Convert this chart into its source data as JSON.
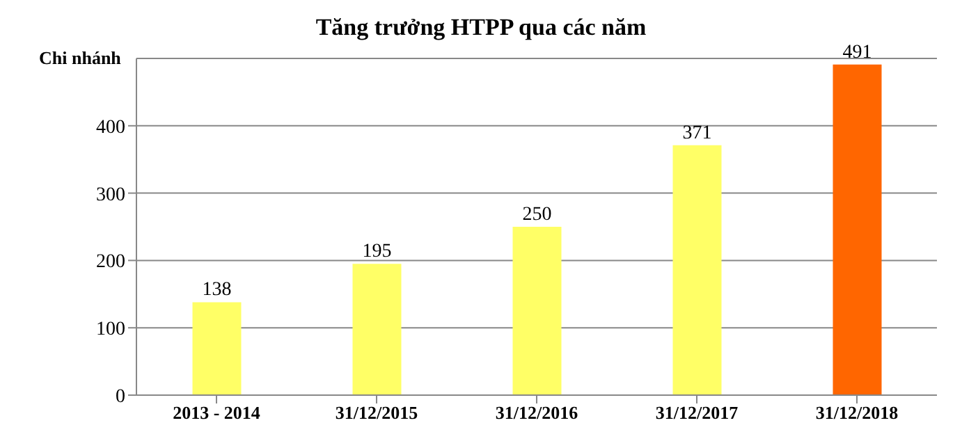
{
  "chart_data": {
    "type": "bar",
    "title": "Tăng trưởng HTPP qua các năm",
    "ylabel": "Chi nhánh",
    "categories": [
      "2013 - 2014",
      "31/12/2015",
      "31/12/2016",
      "31/12/2017",
      "31/12/2018"
    ],
    "values": [
      138,
      195,
      250,
      371,
      491
    ],
    "colors": [
      "#ffff66",
      "#ffff66",
      "#ffff66",
      "#ffff66",
      "#ff6600"
    ],
    "ylim": [
      0,
      500
    ],
    "yticks": [
      0,
      100,
      200,
      300,
      400
    ],
    "grid": "y",
    "data_labels": true
  }
}
